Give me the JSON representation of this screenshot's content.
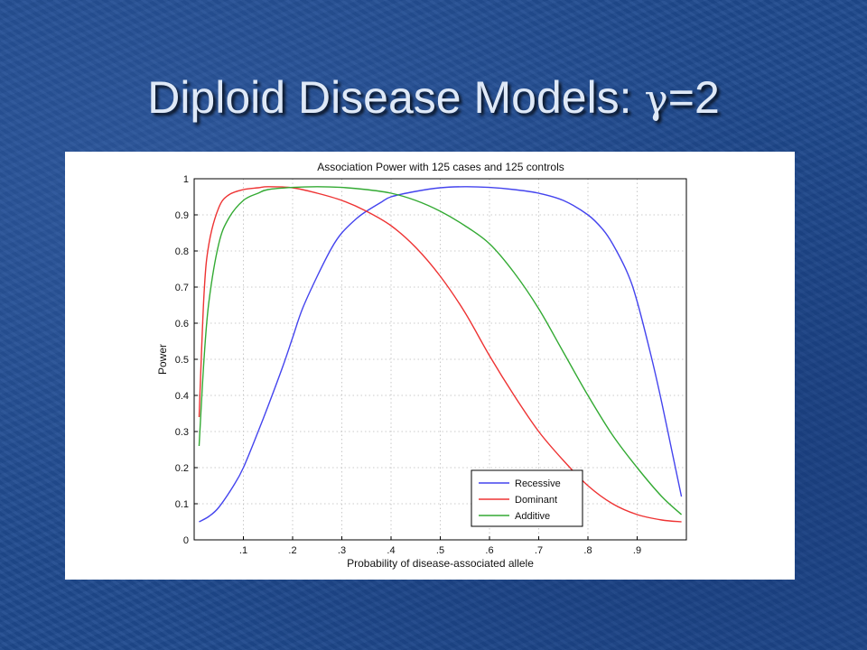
{
  "slide": {
    "title_main": "Diploid Disease Models: ",
    "title_gamma": "γ",
    "title_suffix": "=2"
  },
  "chart_data": {
    "type": "line",
    "title": "Association Power with 125 cases and 125 controls",
    "xlabel": "Probability of disease-associated allele",
    "ylabel": "Power",
    "xlim": [
      0,
      1
    ],
    "ylim": [
      0,
      1
    ],
    "grid": true,
    "legend_position": "bottom-right",
    "x_ticks": [
      0.1,
      0.2,
      0.3,
      0.4,
      0.5,
      0.6,
      0.7,
      0.8,
      0.9
    ],
    "x_tick_labels": [
      ".1",
      ".2",
      ".3",
      ".4",
      ".5",
      ".6",
      ".7",
      ".8",
      ".9"
    ],
    "y_ticks": [
      0,
      0.1,
      0.2,
      0.3,
      0.4,
      0.5,
      0.6,
      0.7,
      0.8,
      0.9,
      1
    ],
    "y_tick_labels": [
      "0",
      "0.1",
      "0.2",
      "0.3",
      "0.4",
      "0.5",
      "0.6",
      "0.7",
      "0.8",
      "0.9",
      "1"
    ],
    "series": [
      {
        "name": "Recessive",
        "color": "#4444ee",
        "x": [
          0.01,
          0.03,
          0.05,
          0.08,
          0.1,
          0.13,
          0.15,
          0.18,
          0.2,
          0.22,
          0.25,
          0.28,
          0.3,
          0.33,
          0.35,
          0.38,
          0.4,
          0.45,
          0.5,
          0.55,
          0.6,
          0.65,
          0.7,
          0.75,
          0.8,
          0.83,
          0.85,
          0.88,
          0.9,
          0.93,
          0.95,
          0.97,
          0.99
        ],
        "y": [
          0.05,
          0.065,
          0.09,
          0.15,
          0.2,
          0.3,
          0.37,
          0.48,
          0.56,
          0.64,
          0.73,
          0.81,
          0.85,
          0.89,
          0.91,
          0.935,
          0.95,
          0.965,
          0.975,
          0.978,
          0.976,
          0.97,
          0.96,
          0.94,
          0.9,
          0.86,
          0.82,
          0.74,
          0.66,
          0.5,
          0.38,
          0.25,
          0.12
        ]
      },
      {
        "name": "Dominant",
        "color": "#ee3333",
        "x": [
          0.01,
          0.02,
          0.03,
          0.05,
          0.07,
          0.1,
          0.13,
          0.15,
          0.2,
          0.25,
          0.3,
          0.35,
          0.4,
          0.45,
          0.5,
          0.55,
          0.6,
          0.65,
          0.7,
          0.75,
          0.8,
          0.85,
          0.9,
          0.95,
          0.99
        ],
        "y": [
          0.34,
          0.68,
          0.82,
          0.92,
          0.955,
          0.97,
          0.975,
          0.978,
          0.975,
          0.96,
          0.94,
          0.91,
          0.87,
          0.81,
          0.73,
          0.63,
          0.51,
          0.4,
          0.3,
          0.22,
          0.15,
          0.1,
          0.07,
          0.055,
          0.05
        ]
      },
      {
        "name": "Additive",
        "color": "#33aa33",
        "x": [
          0.01,
          0.02,
          0.03,
          0.05,
          0.07,
          0.1,
          0.13,
          0.15,
          0.2,
          0.25,
          0.3,
          0.35,
          0.4,
          0.45,
          0.5,
          0.55,
          0.6,
          0.65,
          0.7,
          0.75,
          0.8,
          0.85,
          0.9,
          0.95,
          0.99
        ],
        "y": [
          0.26,
          0.5,
          0.66,
          0.82,
          0.89,
          0.94,
          0.96,
          0.97,
          0.976,
          0.978,
          0.976,
          0.97,
          0.96,
          0.94,
          0.91,
          0.87,
          0.82,
          0.74,
          0.64,
          0.52,
          0.4,
          0.29,
          0.2,
          0.12,
          0.07
        ]
      }
    ]
  }
}
